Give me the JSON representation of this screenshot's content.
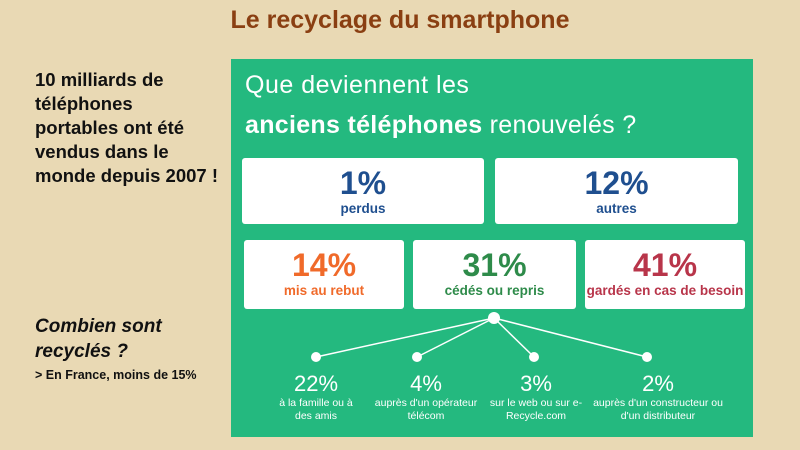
{
  "slide": {
    "title": "Le recyclage du smartphone",
    "intro": "10 milliards de téléphones portables ont été vendus dans le monde depuis 2007 !",
    "question": "Combien sont recyclés ?",
    "note": "> En France, moins de 15%"
  },
  "infographic": {
    "heading_line1": "Que deviennent les",
    "heading_line2_bold": "anciens téléphones",
    "heading_line2_rest": " renouvelés ?",
    "colors": {
      "background": "#24b97f",
      "blue": "#1f4f8f",
      "orange": "#f06a2a",
      "green": "#2e8b4a",
      "red": "#b8354a"
    },
    "boxes": [
      {
        "pct": "1%",
        "label": "perdus"
      },
      {
        "pct": "12%",
        "label": "autres"
      },
      {
        "pct": "14%",
        "label": "mis au rebut"
      },
      {
        "pct": "31%",
        "label": "cédés ou repris"
      },
      {
        "pct": "41%",
        "label": "gardés en cas de besoin"
      }
    ],
    "sub": [
      {
        "pct": "22%",
        "label": "à la famille ou à des amis"
      },
      {
        "pct": "4%",
        "label": "auprès d'un opérateur télécom"
      },
      {
        "pct": "3%",
        "label": "sur le web ou sur e-Recycle.com"
      },
      {
        "pct": "2%",
        "label": "auprès d'un constructeur ou d'un distributeur"
      }
    ]
  }
}
